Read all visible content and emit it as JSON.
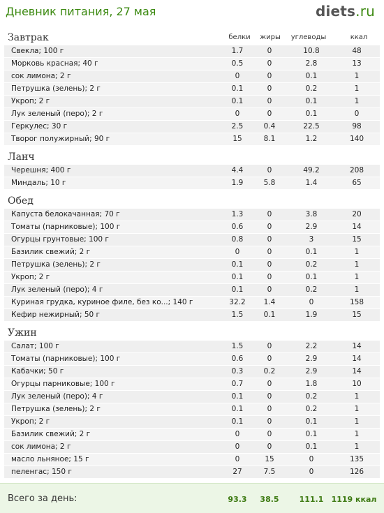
{
  "header": {
    "title": "Дневник питания, 27 мая",
    "logo_main": "diets",
    "logo_tld": ".ru"
  },
  "columns": {
    "protein": "белки",
    "fat": "жиры",
    "carbs": "углеводы",
    "kcal": "ккал"
  },
  "meals": [
    {
      "name": "Завтрак",
      "items": [
        [
          "Свекла; 100 г",
          "1.7",
          "0",
          "10.8",
          "48"
        ],
        [
          "Морковь красная; 40 г",
          "0.5",
          "0",
          "2.8",
          "13"
        ],
        [
          "сок лимона; 2 г",
          "0",
          "0",
          "0.1",
          "1"
        ],
        [
          "Петрушка (зелень); 2 г",
          "0.1",
          "0",
          "0.2",
          "1"
        ],
        [
          "Укроп; 2 г",
          "0.1",
          "0",
          "0.1",
          "1"
        ],
        [
          "Лук зеленый (перо); 2 г",
          "0",
          "0",
          "0.1",
          "0"
        ],
        [
          "Геркулес; 30 г",
          "2.5",
          "0.4",
          "22.5",
          "98"
        ],
        [
          "Творог полужирный; 90 г",
          "15",
          "8.1",
          "1.2",
          "140"
        ]
      ]
    },
    {
      "name": "Ланч",
      "items": [
        [
          "Черешня; 400 г",
          "4.4",
          "0",
          "49.2",
          "208"
        ],
        [
          "Миндаль; 10 г",
          "1.9",
          "5.8",
          "1.4",
          "65"
        ]
      ]
    },
    {
      "name": "Обед",
      "items": [
        [
          "Капуста белокачанная; 70 г",
          "1.3",
          "0",
          "3.8",
          "20"
        ],
        [
          "Томаты (парниковые); 100 г",
          "0.6",
          "0",
          "2.9",
          "14"
        ],
        [
          "Огурцы грунтовые; 100 г",
          "0.8",
          "0",
          "3",
          "15"
        ],
        [
          "Базилик свежий; 2 г",
          "0",
          "0",
          "0.1",
          "1"
        ],
        [
          "Петрушка (зелень); 2 г",
          "0.1",
          "0",
          "0.2",
          "1"
        ],
        [
          "Укроп; 2 г",
          "0.1",
          "0",
          "0.1",
          "1"
        ],
        [
          "Лук зеленый (перо); 4 г",
          "0.1",
          "0",
          "0.2",
          "1"
        ],
        [
          "Куриная грудка, куриное филе, без ко...; 140 г",
          "32.2",
          "1.4",
          "0",
          "158"
        ],
        [
          "Кефир нежирный; 50 г",
          "1.5",
          "0.1",
          "1.9",
          "15"
        ]
      ]
    },
    {
      "name": "Ужин",
      "items": [
        [
          "Салат; 100 г",
          "1.5",
          "0",
          "2.2",
          "14"
        ],
        [
          "Томаты (парниковые); 100 г",
          "0.6",
          "0",
          "2.9",
          "14"
        ],
        [
          "Кабачки; 50 г",
          "0.3",
          "0.2",
          "2.9",
          "14"
        ],
        [
          "Огурцы парниковые; 100 г",
          "0.7",
          "0",
          "1.8",
          "10"
        ],
        [
          "Лук зеленый (перо); 4 г",
          "0.1",
          "0",
          "0.2",
          "1"
        ],
        [
          "Петрушка (зелень); 2 г",
          "0.1",
          "0",
          "0.2",
          "1"
        ],
        [
          "Укроп; 2 г",
          "0.1",
          "0",
          "0.1",
          "1"
        ],
        [
          "Базилик свежий; 2 г",
          "0",
          "0",
          "0.1",
          "1"
        ],
        [
          "сок лимона; 2 г",
          "0",
          "0",
          "0.1",
          "1"
        ],
        [
          "масло льняное; 15 г",
          "0",
          "15",
          "0",
          "135"
        ],
        [
          "пеленгас; 150 г",
          "27",
          "7.5",
          "0",
          "126"
        ]
      ]
    }
  ],
  "totals": {
    "label": "Всего за день:",
    "protein": "93.3",
    "fat": "38.5",
    "carbs": "111.1",
    "kcal": "1119 ккал"
  }
}
